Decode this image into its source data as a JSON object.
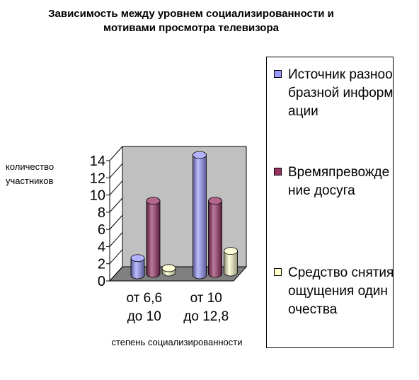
{
  "chart_data": {
    "type": "bar",
    "title": "Зависимость между уровнем социализированности и мотивами просмотра телевизора",
    "xlabel": "степень социализированности",
    "ylabel": "количество участников",
    "categories": [
      "от 6,6 до 10",
      "от 10 до 12,8"
    ],
    "ylim": [
      0,
      14
    ],
    "yticks": [
      0,
      2,
      4,
      6,
      8,
      10,
      12,
      14
    ],
    "legend_position": "right",
    "grid": false,
    "series": [
      {
        "name": "Источник разнообразной информации",
        "values": [
          2,
          14
        ],
        "color": "#9999ff"
      },
      {
        "name": "Времяпревождение досуга",
        "values": [
          8.5,
          8.5
        ],
        "color": "#993366"
      },
      {
        "name": "Средство снятия ощущения одиночества",
        "values": [
          0.5,
          2.5
        ],
        "color": "#ffffcc"
      }
    ]
  }
}
